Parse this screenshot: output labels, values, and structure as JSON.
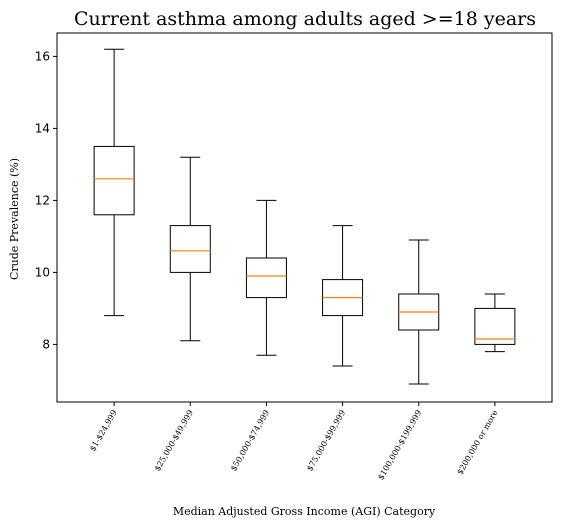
{
  "chart_data": {
    "type": "box",
    "title": "Current asthma among adults aged >=18 years",
    "xlabel": "Median Adjusted Gross Income (AGI) Category",
    "ylabel": "Crude Prevalence (%)",
    "ylim": [
      6.4,
      16.65
    ],
    "yticks": [
      "8",
      "10",
      "12",
      "14",
      "16"
    ],
    "grid": false,
    "colors": {
      "box": "#000000",
      "median": "#ff7f0e",
      "background": "#ffffff"
    },
    "categories": [
      "$1-$24,999",
      "$25,000-$49,999",
      "$50,000-$74,999",
      "$75,000-$99,999",
      "$100,000-$199,999",
      "$200,000 or more"
    ],
    "boxes": [
      {
        "whisker_low": 8.8,
        "q1": 11.6,
        "median": 12.6,
        "q3": 13.5,
        "whisker_high": 16.2
      },
      {
        "whisker_low": 8.1,
        "q1": 10.0,
        "median": 10.6,
        "q3": 11.3,
        "whisker_high": 13.2
      },
      {
        "whisker_low": 7.7,
        "q1": 9.3,
        "median": 9.9,
        "q3": 10.4,
        "whisker_high": 12.0
      },
      {
        "whisker_low": 7.4,
        "q1": 8.8,
        "median": 9.3,
        "q3": 9.8,
        "whisker_high": 11.3
      },
      {
        "whisker_low": 6.9,
        "q1": 8.4,
        "median": 8.9,
        "q3": 9.4,
        "whisker_high": 10.9
      },
      {
        "whisker_low": 7.8,
        "q1": 8.0,
        "median": 8.15,
        "q3": 9.0,
        "whisker_high": 9.4
      }
    ]
  }
}
